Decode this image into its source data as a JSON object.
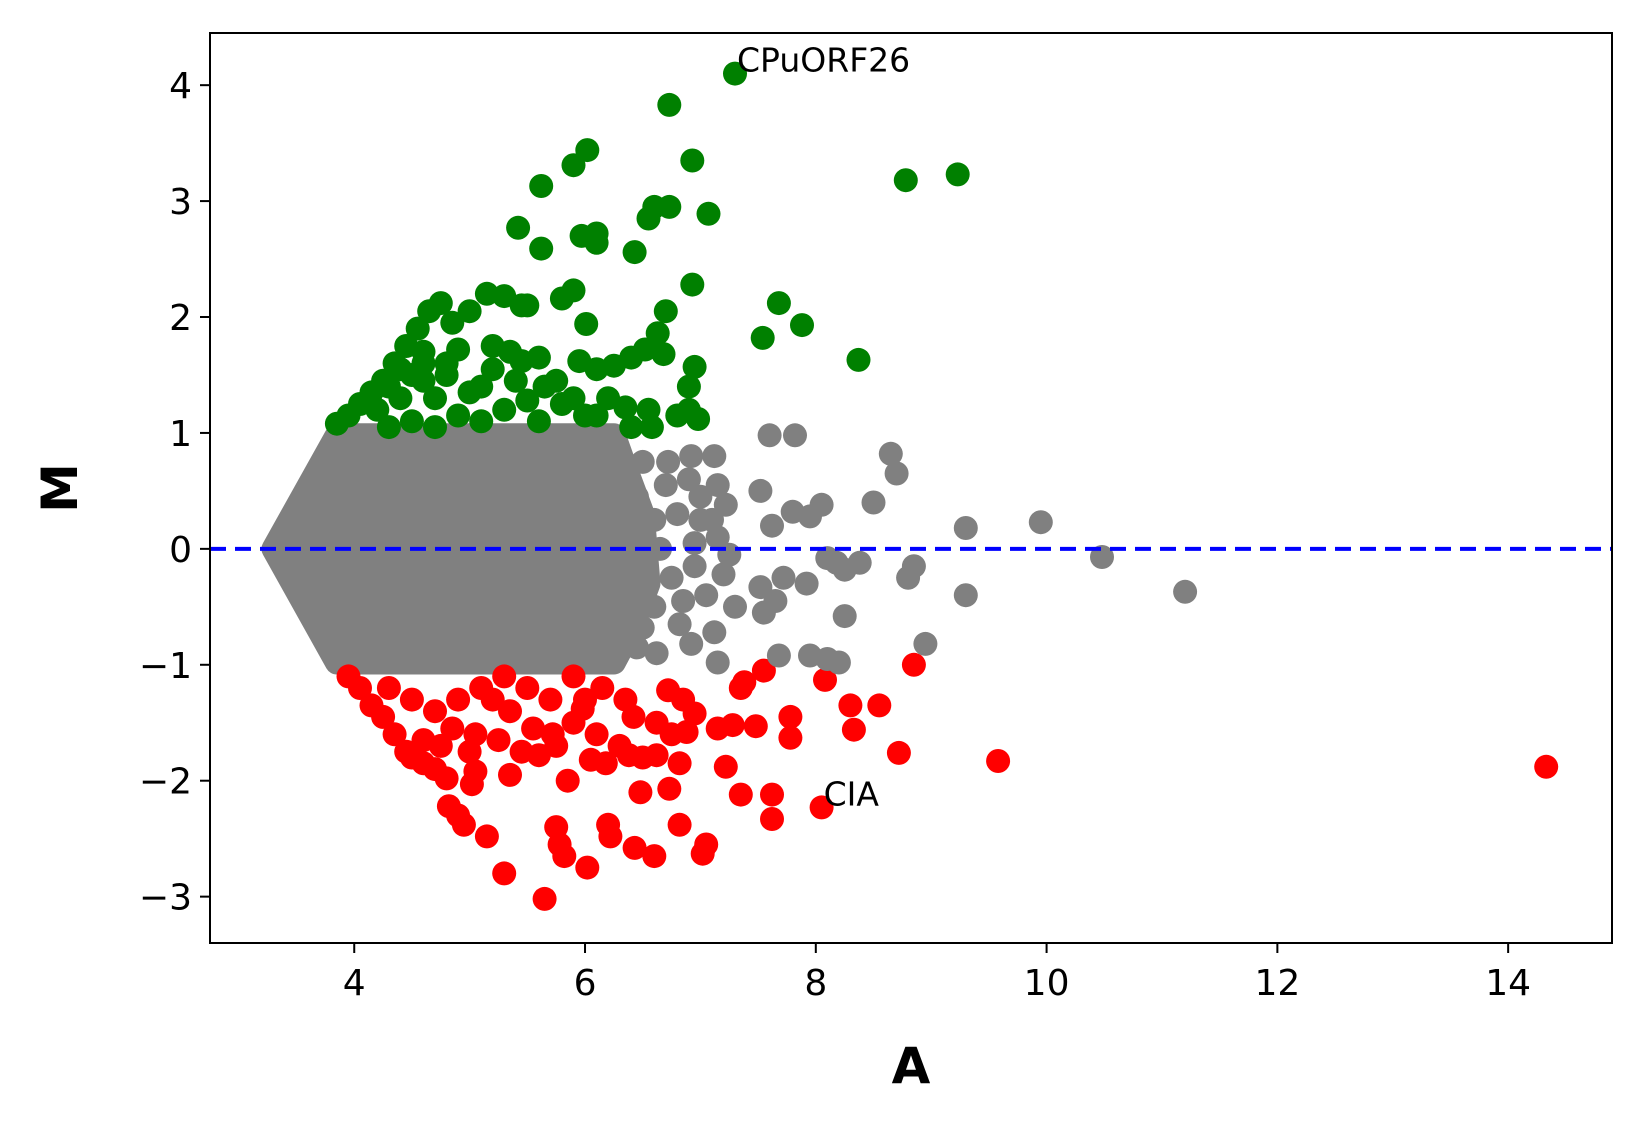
{
  "chart_data": {
    "type": "scatter",
    "title": "",
    "xlabel": "A",
    "ylabel": "M",
    "xlim": [
      2.75,
      14.9
    ],
    "ylim": [
      -3.4,
      4.45
    ],
    "xticks": [
      4,
      6,
      8,
      10,
      12,
      14
    ],
    "yticks": [
      -3,
      -2,
      -1,
      0,
      1,
      2,
      3,
      4
    ],
    "xtick_labels": [
      "4",
      "6",
      "8",
      "10",
      "12",
      "14"
    ],
    "ytick_labels": [
      "−3",
      "−2",
      "−1",
      "0",
      "1",
      "2",
      "3",
      "4"
    ],
    "grid": false,
    "reference_line": {
      "y": 0,
      "style": "dashed",
      "color": "#0000ff"
    },
    "colors": {
      "up": "#008000",
      "down": "#ff0000",
      "unchanged": "#808080"
    },
    "annotations": [
      {
        "text": "CPuORF26",
        "x": 7.3,
        "y": 4.1
      },
      {
        "text": "CIA",
        "x": 8.05,
        "y": -2.23
      }
    ],
    "series": [
      {
        "group": "up",
        "points": [
          [
            7.3,
            4.1
          ],
          [
            6.73,
            3.83
          ],
          [
            6.02,
            3.44
          ],
          [
            5.9,
            3.31
          ],
          [
            6.93,
            3.35
          ],
          [
            8.78,
            3.18
          ],
          [
            9.23,
            3.23
          ],
          [
            5.62,
            3.13
          ],
          [
            6.6,
            2.95
          ],
          [
            6.73,
            2.95
          ],
          [
            6.55,
            2.85
          ],
          [
            7.07,
            2.89
          ],
          [
            5.42,
            2.77
          ],
          [
            5.97,
            2.7
          ],
          [
            6.1,
            2.72
          ],
          [
            6.1,
            2.64
          ],
          [
            5.62,
            2.59
          ],
          [
            6.43,
            2.56
          ],
          [
            6.93,
            2.28
          ],
          [
            5.9,
            2.23
          ],
          [
            5.8,
            2.16
          ],
          [
            7.68,
            2.12
          ],
          [
            5.5,
            2.1
          ],
          [
            6.7,
            2.05
          ],
          [
            6.01,
            1.94
          ],
          [
            7.88,
            1.93
          ],
          [
            6.63,
            1.86
          ],
          [
            7.54,
            1.82
          ],
          [
            8.37,
            1.63
          ],
          [
            5.15,
            2.2
          ],
          [
            5.3,
            2.18
          ],
          [
            5.45,
            2.1
          ],
          [
            5.0,
            2.05
          ],
          [
            4.85,
            1.95
          ],
          [
            4.65,
            2.05
          ],
          [
            4.75,
            2.12
          ],
          [
            4.55,
            1.9
          ],
          [
            4.45,
            1.75
          ],
          [
            4.35,
            1.6
          ],
          [
            4.25,
            1.45
          ],
          [
            4.15,
            1.35
          ],
          [
            4.05,
            1.25
          ],
          [
            3.95,
            1.15
          ],
          [
            3.85,
            1.08
          ],
          [
            4.2,
            1.2
          ],
          [
            4.4,
            1.3
          ],
          [
            4.6,
            1.45
          ],
          [
            4.8,
            1.5
          ],
          [
            5.0,
            1.35
          ],
          [
            5.2,
            1.55
          ],
          [
            5.35,
            1.7
          ],
          [
            5.6,
            1.65
          ],
          [
            5.75,
            1.45
          ],
          [
            5.95,
            1.62
          ],
          [
            6.1,
            1.55
          ],
          [
            6.25,
            1.58
          ],
          [
            6.4,
            1.65
          ],
          [
            6.52,
            1.72
          ],
          [
            6.68,
            1.68
          ],
          [
            6.95,
            1.57
          ],
          [
            6.9,
            1.4
          ],
          [
            6.9,
            1.2
          ],
          [
            6.98,
            1.12
          ],
          [
            6.8,
            1.15
          ],
          [
            6.58,
            1.05
          ],
          [
            6.55,
            1.2
          ],
          [
            6.35,
            1.22
          ],
          [
            6.2,
            1.3
          ],
          [
            5.9,
            1.3
          ],
          [
            5.8,
            1.25
          ],
          [
            6.0,
            1.15
          ],
          [
            5.5,
            1.28
          ],
          [
            5.3,
            1.2
          ],
          [
            5.1,
            1.1
          ],
          [
            4.9,
            1.15
          ],
          [
            4.7,
            1.05
          ],
          [
            4.5,
            1.1
          ],
          [
            4.3,
            1.05
          ],
          [
            4.9,
            1.72
          ],
          [
            5.2,
            1.75
          ],
          [
            5.45,
            1.62
          ],
          [
            4.6,
            1.6
          ],
          [
            4.5,
            1.5
          ],
          [
            4.7,
            1.3
          ],
          [
            5.1,
            1.4
          ],
          [
            5.4,
            1.45
          ],
          [
            4.3,
            1.4
          ],
          [
            4.4,
            1.55
          ],
          [
            4.6,
            1.7
          ],
          [
            4.8,
            1.6
          ],
          [
            5.6,
            1.1
          ],
          [
            5.65,
            1.4
          ],
          [
            6.1,
            1.15
          ],
          [
            6.4,
            1.05
          ]
        ]
      },
      {
        "group": "down",
        "points": [
          [
            5.65,
            -3.02
          ],
          [
            5.3,
            -2.8
          ],
          [
            5.82,
            -2.65
          ],
          [
            6.02,
            -2.75
          ],
          [
            6.6,
            -2.65
          ],
          [
            6.43,
            -2.58
          ],
          [
            7.02,
            -2.63
          ],
          [
            7.05,
            -2.55
          ],
          [
            5.15,
            -2.48
          ],
          [
            5.75,
            -2.4
          ],
          [
            6.2,
            -2.38
          ],
          [
            6.22,
            -2.48
          ],
          [
            6.82,
            -2.38
          ],
          [
            5.78,
            -2.55
          ],
          [
            4.95,
            -2.38
          ],
          [
            4.9,
            -2.3
          ],
          [
            4.82,
            -2.22
          ],
          [
            7.62,
            -2.33
          ],
          [
            8.05,
            -2.23
          ],
          [
            7.35,
            -2.12
          ],
          [
            7.62,
            -2.12
          ],
          [
            6.48,
            -2.1
          ],
          [
            6.73,
            -2.07
          ],
          [
            5.02,
            -2.03
          ],
          [
            5.85,
            -2.0
          ],
          [
            5.35,
            -1.95
          ],
          [
            5.05,
            -1.92
          ],
          [
            4.8,
            -1.98
          ],
          [
            4.7,
            -1.9
          ],
          [
            6.05,
            -1.82
          ],
          [
            6.18,
            -1.85
          ],
          [
            6.38,
            -1.78
          ],
          [
            6.62,
            -1.78
          ],
          [
            6.82,
            -1.85
          ],
          [
            7.22,
            -1.88
          ],
          [
            7.78,
            -1.63
          ],
          [
            7.48,
            -1.53
          ],
          [
            7.28,
            -1.52
          ],
          [
            8.72,
            -1.76
          ],
          [
            9.58,
            -1.83
          ],
          [
            14.33,
            -1.88
          ],
          [
            8.33,
            -1.56
          ],
          [
            8.55,
            -1.35
          ],
          [
            8.3,
            -1.35
          ],
          [
            7.78,
            -1.45
          ],
          [
            8.08,
            -1.13
          ],
          [
            8.85,
            -1.0
          ],
          [
            7.55,
            -1.05
          ],
          [
            7.38,
            -1.15
          ],
          [
            7.35,
            -1.2
          ],
          [
            7.15,
            -1.55
          ],
          [
            6.88,
            -1.58
          ],
          [
            6.95,
            -1.42
          ],
          [
            6.85,
            -1.3
          ],
          [
            6.72,
            -1.22
          ],
          [
            6.62,
            -1.5
          ],
          [
            6.42,
            -1.45
          ],
          [
            6.35,
            -1.3
          ],
          [
            6.15,
            -1.2
          ],
          [
            5.98,
            -1.38
          ],
          [
            5.9,
            -1.5
          ],
          [
            5.72,
            -1.6
          ],
          [
            5.55,
            -1.55
          ],
          [
            5.35,
            -1.4
          ],
          [
            5.2,
            -1.3
          ],
          [
            5.05,
            -1.6
          ],
          [
            4.85,
            -1.55
          ],
          [
            4.6,
            -1.65
          ],
          [
            4.45,
            -1.75
          ],
          [
            4.35,
            -1.6
          ],
          [
            4.25,
            -1.45
          ],
          [
            4.15,
            -1.35
          ],
          [
            4.05,
            -1.2
          ],
          [
            3.95,
            -1.1
          ],
          [
            4.3,
            -1.2
          ],
          [
            4.5,
            -1.3
          ],
          [
            4.7,
            -1.4
          ],
          [
            4.9,
            -1.3
          ],
          [
            5.1,
            -1.2
          ],
          [
            5.3,
            -1.1
          ],
          [
            5.5,
            -1.2
          ],
          [
            5.7,
            -1.3
          ],
          [
            5.9,
            -1.1
          ],
          [
            6.1,
            -1.6
          ],
          [
            6.3,
            -1.7
          ],
          [
            4.5,
            -1.8
          ],
          [
            4.6,
            -1.85
          ],
          [
            4.75,
            -1.7
          ],
          [
            5.0,
            -1.75
          ],
          [
            5.25,
            -1.65
          ],
          [
            5.45,
            -1.75
          ],
          [
            5.6,
            -1.78
          ],
          [
            5.75,
            -1.7
          ],
          [
            6.0,
            -1.3
          ],
          [
            6.5,
            -1.8
          ],
          [
            6.75,
            -1.6
          ]
        ]
      },
      {
        "group": "unchanged",
        "points": [
          [
            7.6,
            0.98
          ],
          [
            7.82,
            0.98
          ],
          [
            8.65,
            0.82
          ],
          [
            8.7,
            0.65
          ],
          [
            7.52,
            0.5
          ],
          [
            8.5,
            0.4
          ],
          [
            8.05,
            0.38
          ],
          [
            7.8,
            0.32
          ],
          [
            7.95,
            0.28
          ],
          [
            7.62,
            0.2
          ],
          [
            9.95,
            0.23
          ],
          [
            9.3,
            0.18
          ],
          [
            10.48,
            -0.07
          ],
          [
            11.2,
            -0.37
          ],
          [
            8.1,
            -0.08
          ],
          [
            8.18,
            -0.12
          ],
          [
            8.38,
            -0.12
          ],
          [
            8.25,
            -0.18
          ],
          [
            8.85,
            -0.15
          ],
          [
            8.8,
            -0.25
          ],
          [
            7.92,
            -0.3
          ],
          [
            7.72,
            -0.25
          ],
          [
            7.52,
            -0.33
          ],
          [
            7.65,
            -0.45
          ],
          [
            7.55,
            -0.55
          ],
          [
            8.25,
            -0.58
          ],
          [
            9.3,
            -0.4
          ],
          [
            8.95,
            -0.82
          ],
          [
            7.95,
            -0.92
          ],
          [
            8.1,
            -0.95
          ],
          [
            8.2,
            -0.98
          ],
          [
            7.68,
            -0.92
          ],
          [
            7.15,
            -0.98
          ],
          [
            7.12,
            -0.72
          ],
          [
            6.82,
            -0.65
          ],
          [
            6.92,
            -0.82
          ],
          [
            6.62,
            -0.9
          ],
          [
            6.45,
            -0.85
          ],
          [
            6.5,
            -0.68
          ],
          [
            6.25,
            -0.9
          ],
          [
            7.12,
            0.8
          ],
          [
            6.92,
            0.8
          ],
          [
            6.72,
            0.75
          ],
          [
            6.5,
            0.75
          ],
          [
            6.35,
            0.6
          ],
          [
            7.15,
            0.55
          ],
          [
            7.22,
            0.38
          ],
          [
            7.0,
            0.25
          ],
          [
            6.8,
            0.3
          ],
          [
            6.6,
            0.25
          ],
          [
            6.55,
            -0.28
          ],
          [
            6.75,
            -0.25
          ],
          [
            7.05,
            -0.4
          ],
          [
            7.2,
            -0.22
          ],
          [
            7.15,
            0.1
          ],
          [
            6.95,
            0.05
          ],
          [
            6.7,
            0.55
          ],
          [
            6.45,
            0.45
          ],
          [
            6.9,
            0.6
          ],
          [
            6.6,
            -0.5
          ],
          [
            6.85,
            -0.45
          ],
          [
            7.3,
            -0.5
          ],
          [
            7.0,
            0.45
          ],
          [
            6.65,
            0.0
          ],
          [
            6.4,
            0.15
          ],
          [
            7.1,
            0.25
          ],
          [
            7.25,
            -0.05
          ],
          [
            6.5,
            -0.1
          ],
          [
            6.3,
            0.35
          ],
          [
            6.95,
            -0.15
          ]
        ]
      }
    ],
    "dense_region_unchanged": {
      "description_free_envelope": [
        [
          3.3,
          0.0
        ],
        [
          3.85,
          0.98
        ],
        [
          6.25,
          0.98
        ],
        [
          6.35,
          0.7
        ],
        [
          6.5,
          0.3
        ],
        [
          6.55,
          -0.3
        ],
        [
          6.4,
          -0.7
        ],
        [
          6.25,
          -0.98
        ],
        [
          3.85,
          -0.98
        ]
      ]
    }
  }
}
